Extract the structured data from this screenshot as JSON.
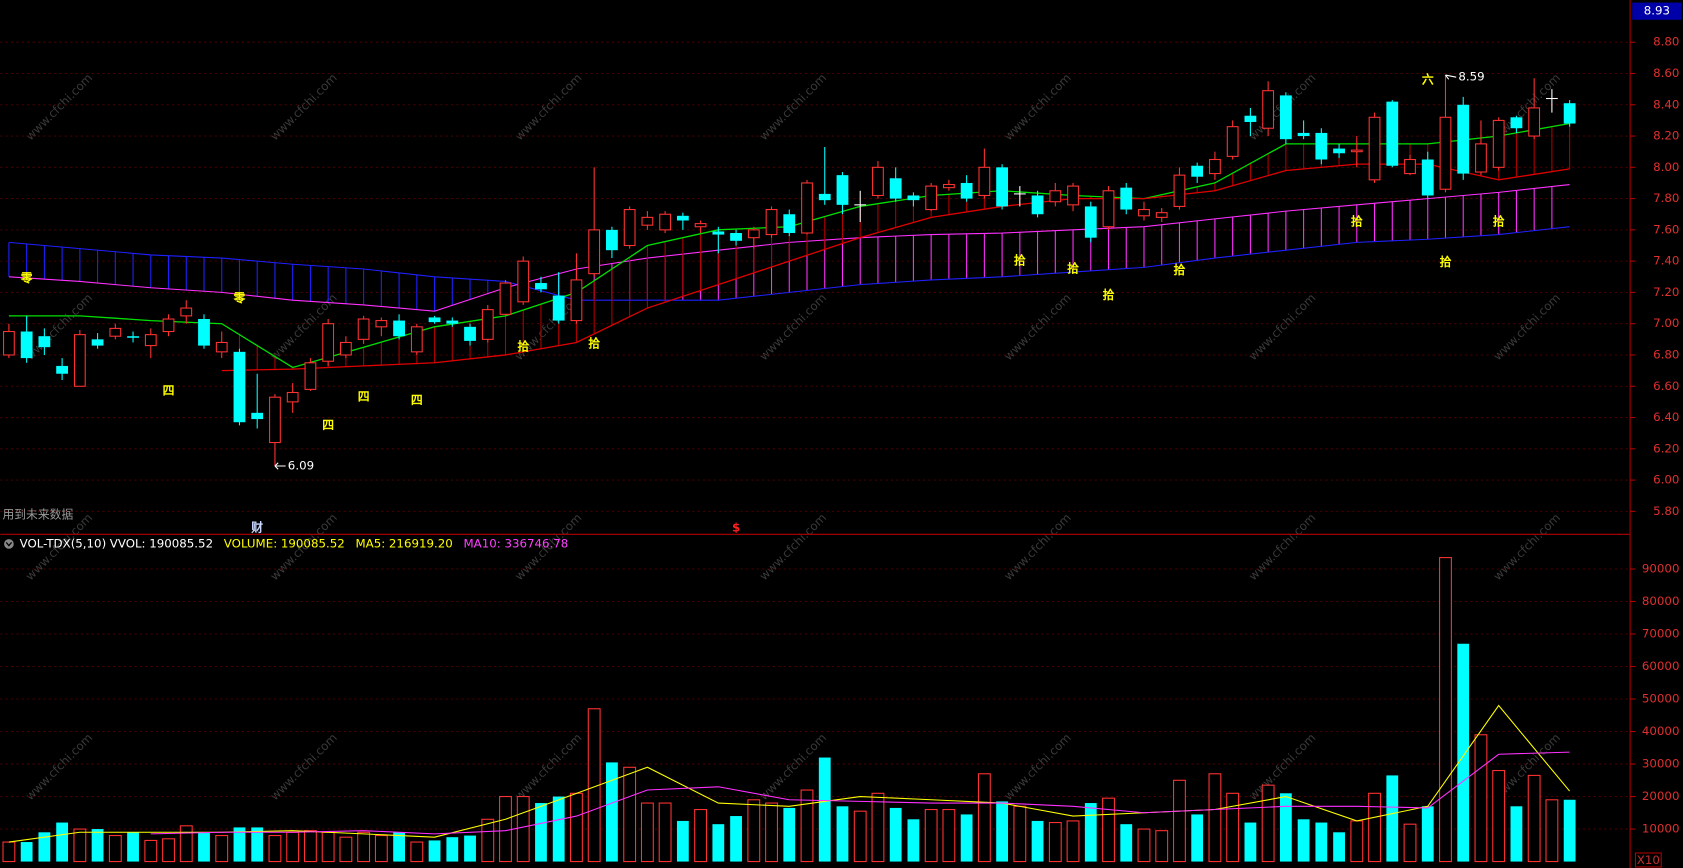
{
  "watermark": "www.cfchi.com",
  "chart_data": [
    {
      "type": "candlestick",
      "up_color": "#ff3232",
      "down_color": "#00ffff",
      "flat_color": "#ffffff",
      "open": [
        6.8,
        6.95,
        6.92,
        6.73,
        6.6,
        6.9,
        6.92,
        6.92,
        6.86,
        6.95,
        7.05,
        7.03,
        6.82,
        6.82,
        6.43,
        6.24,
        6.5,
        6.58,
        6.76,
        6.8,
        6.9,
        6.98,
        7.02,
        6.82,
        7.04,
        7.02,
        6.98,
        6.9,
        7.06,
        7.14,
        7.26,
        7.18,
        7.02,
        7.32,
        7.6,
        7.5,
        7.63,
        7.6,
        7.69,
        7.62,
        7.59,
        7.58,
        7.55,
        7.57,
        7.7,
        7.58,
        7.83,
        7.95,
        7.76,
        7.82,
        7.93,
        7.82,
        7.73,
        7.87,
        7.9,
        7.82,
        8.0,
        7.83,
        7.82,
        7.78,
        7.76,
        7.75,
        7.62,
        7.87,
        7.69,
        7.68,
        7.75,
        8.01,
        7.96,
        8.07,
        8.33,
        8.25,
        8.46,
        8.22,
        8.22,
        8.12,
        8.1,
        7.92,
        8.42,
        7.96,
        8.05,
        7.86,
        8.4,
        7.97,
        8.0,
        8.32,
        8.2,
        8.44,
        8.41
      ],
      "high": [
        7.0,
        7.05,
        6.97,
        6.78,
        6.96,
        6.94,
        7.0,
        6.95,
        6.97,
        7.06,
        7.15,
        7.06,
        6.95,
        6.84,
        6.68,
        6.55,
        6.62,
        6.78,
        7.03,
        6.92,
        7.05,
        7.04,
        7.06,
        7.0,
        7.05,
        7.04,
        7.0,
        7.12,
        7.28,
        7.43,
        7.3,
        7.33,
        7.45,
        8.0,
        7.62,
        7.75,
        7.72,
        7.72,
        7.71,
        7.66,
        7.62,
        7.6,
        7.62,
        7.75,
        7.73,
        7.92,
        8.13,
        7.97,
        7.85,
        8.04,
        8.0,
        7.84,
        7.9,
        7.92,
        7.95,
        8.12,
        8.02,
        7.88,
        7.85,
        7.9,
        7.9,
        7.78,
        7.88,
        7.9,
        7.78,
        7.74,
        8.0,
        8.03,
        8.1,
        8.3,
        8.38,
        8.55,
        8.48,
        8.3,
        8.25,
        8.15,
        8.2,
        8.35,
        8.43,
        8.08,
        8.1,
        8.59,
        8.45,
        8.3,
        8.32,
        8.33,
        8.57,
        8.5,
        8.43
      ],
      "low": [
        6.78,
        6.75,
        6.8,
        6.64,
        6.6,
        6.84,
        6.9,
        6.88,
        6.78,
        6.92,
        7.0,
        6.84,
        6.78,
        6.35,
        6.33,
        6.09,
        6.43,
        6.57,
        6.73,
        6.78,
        6.87,
        6.92,
        6.9,
        6.8,
        7.0,
        6.98,
        6.86,
        6.88,
        7.05,
        7.12,
        7.2,
        7.0,
        7.0,
        7.3,
        7.42,
        7.48,
        7.6,
        7.58,
        7.6,
        7.58,
        7.45,
        7.5,
        7.48,
        7.55,
        7.56,
        7.57,
        7.76,
        7.7,
        7.65,
        7.8,
        7.78,
        7.75,
        7.72,
        7.85,
        7.78,
        7.8,
        7.73,
        7.75,
        7.68,
        7.75,
        7.72,
        7.52,
        7.6,
        7.7,
        7.66,
        7.65,
        7.73,
        7.9,
        7.92,
        8.05,
        8.2,
        8.2,
        8.15,
        8.18,
        8.02,
        8.06,
        8.0,
        7.9,
        8.0,
        7.95,
        7.8,
        7.84,
        7.92,
        7.95,
        7.98,
        8.22,
        8.18,
        8.35,
        8.26
      ],
      "close": [
        6.95,
        6.78,
        6.85,
        6.68,
        6.93,
        6.86,
        6.97,
        6.91,
        6.93,
        7.03,
        7.1,
        6.86,
        6.88,
        6.37,
        6.39,
        6.53,
        6.56,
        6.75,
        7.0,
        6.88,
        7.03,
        7.02,
        6.92,
        6.98,
        7.01,
        7.0,
        6.89,
        7.09,
        7.26,
        7.4,
        7.22,
        7.02,
        7.28,
        7.6,
        7.47,
        7.73,
        7.68,
        7.7,
        7.66,
        7.64,
        7.57,
        7.53,
        7.6,
        7.73,
        7.58,
        7.9,
        7.79,
        7.76,
        7.76,
        8.0,
        7.8,
        7.79,
        7.88,
        7.89,
        7.8,
        8.0,
        7.75,
        7.83,
        7.7,
        7.85,
        7.88,
        7.55,
        7.85,
        7.73,
        7.73,
        7.71,
        7.95,
        7.94,
        8.05,
        8.26,
        8.29,
        8.49,
        8.18,
        8.2,
        8.05,
        8.09,
        8.11,
        8.32,
        8.01,
        8.05,
        7.82,
        8.32,
        7.96,
        8.15,
        8.3,
        8.25,
        8.38,
        8.44,
        8.28
      ],
      "ylim": [
        5.66,
        9.07
      ],
      "yticks": [
        {
          "value": 5.8,
          "label": "5.80"
        },
        {
          "value": 6.0,
          "label": "6.00"
        },
        {
          "value": 6.2,
          "label": "6.20"
        },
        {
          "value": 6.4,
          "label": "6.40"
        },
        {
          "value": 6.6,
          "label": "6.60"
        },
        {
          "value": 6.8,
          "label": "6.80"
        },
        {
          "value": 7.0,
          "label": "7.00"
        },
        {
          "value": 7.2,
          "label": "7.20"
        },
        {
          "value": 7.4,
          "label": "7.40"
        },
        {
          "value": 7.6,
          "label": "7.60"
        },
        {
          "value": 7.8,
          "label": "7.80"
        },
        {
          "value": 8.0,
          "label": "8.00"
        },
        {
          "value": 8.2,
          "label": "8.20"
        },
        {
          "value": 8.4,
          "label": "8.40"
        },
        {
          "value": 8.6,
          "label": "8.60"
        },
        {
          "value": 8.8,
          "label": "8.80"
        }
      ],
      "top_label": 8.93,
      "high_label": 8.59,
      "low_label": 6.09,
      "lines": [
        {
          "color": "#00e000",
          "x": [
            0,
            4,
            8,
            12,
            16,
            20,
            24,
            28,
            32,
            36,
            40,
            44,
            48,
            52,
            56,
            60,
            64,
            68,
            72,
            76,
            80,
            84,
            88
          ],
          "values": [
            7.05,
            7.05,
            7.02,
            7.0,
            6.72,
            6.85,
            6.98,
            7.05,
            7.2,
            7.5,
            7.6,
            7.62,
            7.75,
            7.82,
            7.85,
            7.82,
            7.8,
            7.9,
            8.15,
            8.15,
            8.15,
            8.2,
            8.28
          ]
        },
        {
          "color": "#e00000",
          "x": [
            0,
            4,
            8,
            12,
            16,
            20,
            24,
            28,
            32,
            36,
            40,
            44,
            48,
            52,
            56,
            60,
            64,
            68,
            72,
            76,
            80,
            84,
            88
          ],
          "values": [
            null,
            null,
            null,
            6.7,
            6.71,
            6.73,
            6.75,
            6.8,
            6.88,
            7.1,
            7.25,
            7.4,
            7.55,
            7.68,
            7.75,
            7.8,
            7.8,
            7.85,
            7.98,
            8.02,
            8.02,
            7.92,
            7.99
          ]
        }
      ],
      "cloud": {
        "x": [
          0,
          4,
          8,
          12,
          16,
          20,
          24,
          28,
          32,
          36,
          40,
          44,
          48,
          52,
          56,
          60,
          64,
          68,
          72,
          76,
          80,
          84,
          88
        ],
        "a": [
          7.52,
          7.48,
          7.44,
          7.42,
          7.38,
          7.35,
          7.3,
          7.27,
          7.15,
          7.15,
          7.15,
          7.2,
          7.25,
          7.28,
          7.3,
          7.33,
          7.36,
          7.42,
          7.47,
          7.52,
          7.54,
          7.57,
          7.62
        ],
        "b": [
          7.3,
          7.27,
          7.23,
          7.2,
          7.15,
          7.12,
          7.08,
          7.23,
          7.35,
          7.42,
          7.47,
          7.52,
          7.55,
          7.57,
          7.58,
          7.6,
          7.62,
          7.67,
          7.72,
          7.76,
          7.8,
          7.84,
          7.89
        ],
        "a_color": "#2020ff",
        "b_color": "#ff30ff"
      },
      "annotations": [
        {
          "text": "零",
          "x": 1,
          "y": 7.29
        },
        {
          "text": "零",
          "x": 13,
          "y": 7.16
        },
        {
          "text": "四",
          "x": 9,
          "y": 6.57
        },
        {
          "text": "四",
          "x": 18,
          "y": 6.35
        },
        {
          "text": "四",
          "x": 20,
          "y": 6.53
        },
        {
          "text": "四",
          "x": 23,
          "y": 6.51
        },
        {
          "text": "拾",
          "x": 29,
          "y": 6.85
        },
        {
          "text": "拾",
          "x": 33,
          "y": 6.87
        },
        {
          "text": "拾",
          "x": 57,
          "y": 7.4
        },
        {
          "text": "拾",
          "x": 60,
          "y": 7.35
        },
        {
          "text": "拾",
          "x": 62,
          "y": 7.18
        },
        {
          "text": "拾",
          "x": 66,
          "y": 7.34
        },
        {
          "text": "拾",
          "x": 76,
          "y": 7.65
        },
        {
          "text": "拾",
          "x": 81,
          "y": 7.39
        },
        {
          "text": "拾",
          "x": 84,
          "y": 7.65
        },
        {
          "text": "六",
          "x": 80,
          "y": 8.56
        }
      ],
      "markers": [
        {
          "text": "财",
          "x": 14,
          "color": "#c8d8ff"
        },
        {
          "text": "$",
          "x": 41,
          "color": "#ff2020"
        }
      ],
      "note": "用到未来数据"
    },
    {
      "type": "volume",
      "indicator": "VOL-TDX(5,10)",
      "readouts": [
        {
          "text": "VVOL: 190085.52",
          "color": "#ffffff"
        },
        {
          "text": "VOLUME: 190085.52",
          "color": "#ffff00"
        },
        {
          "text": "MA5: 216919.20",
          "color": "#ffff00"
        },
        {
          "text": "MA10: 336746.78",
          "color": "#ff40ff"
        }
      ],
      "values": [
        6000,
        6000,
        9000,
        12000,
        10000,
        10000,
        8000,
        9000,
        6500,
        7000,
        11000,
        9000,
        8000,
        10500,
        10500,
        8000,
        9000,
        9500,
        9000,
        7500,
        9000,
        8000,
        9000,
        6000,
        6500,
        7500,
        8000,
        13000,
        20000,
        20000,
        18000,
        20000,
        21000,
        47000,
        30500,
        29000,
        18000,
        18000,
        12500,
        16000,
        11500,
        14000,
        19000,
        18000,
        16500,
        22000,
        32000,
        17000,
        15500,
        21000,
        16500,
        13000,
        16000,
        16000,
        14500,
        27000,
        18500,
        17000,
        12500,
        12000,
        12500,
        18000,
        19500,
        11500,
        10000,
        9500,
        25000,
        14500,
        27000,
        21000,
        12000,
        23500,
        21000,
        13000,
        12000,
        9000,
        12500,
        21000,
        26500,
        11500,
        17000,
        93500,
        67000,
        39000,
        28000,
        17000,
        26500,
        19000,
        19008.55
      ],
      "ylim": [
        0,
        100000
      ],
      "yticks": [
        10000,
        20000,
        30000,
        40000,
        50000,
        60000,
        70000,
        80000,
        90000
      ],
      "lines": [
        {
          "color": "#ffff00",
          "x": [
            0,
            4,
            8,
            12,
            16,
            20,
            24,
            28,
            32,
            36,
            40,
            44,
            48,
            52,
            56,
            60,
            64,
            68,
            72,
            76,
            80,
            84,
            88
          ],
          "values": [
            6000,
            9000,
            9000,
            9000,
            9500,
            8500,
            7500,
            13000,
            21000,
            29000,
            18000,
            17000,
            20000,
            19000,
            18000,
            14000,
            15000,
            16000,
            20000,
            12500,
            17000,
            48000,
            21691.92
          ]
        },
        {
          "color": "#ff30ff",
          "x": [
            0,
            4,
            8,
            12,
            16,
            20,
            24,
            28,
            32,
            36,
            40,
            44,
            48,
            52,
            56,
            60,
            64,
            68,
            72,
            76,
            80,
            84,
            88
          ],
          "values": [
            null,
            null,
            8500,
            9000,
            9000,
            9500,
            8500,
            9500,
            14000,
            22000,
            23000,
            19000,
            18500,
            18000,
            18000,
            17000,
            15000,
            16000,
            17000,
            17000,
            16500,
            33000,
            33674.68
          ]
        }
      ],
      "unit_label": "X10"
    }
  ]
}
